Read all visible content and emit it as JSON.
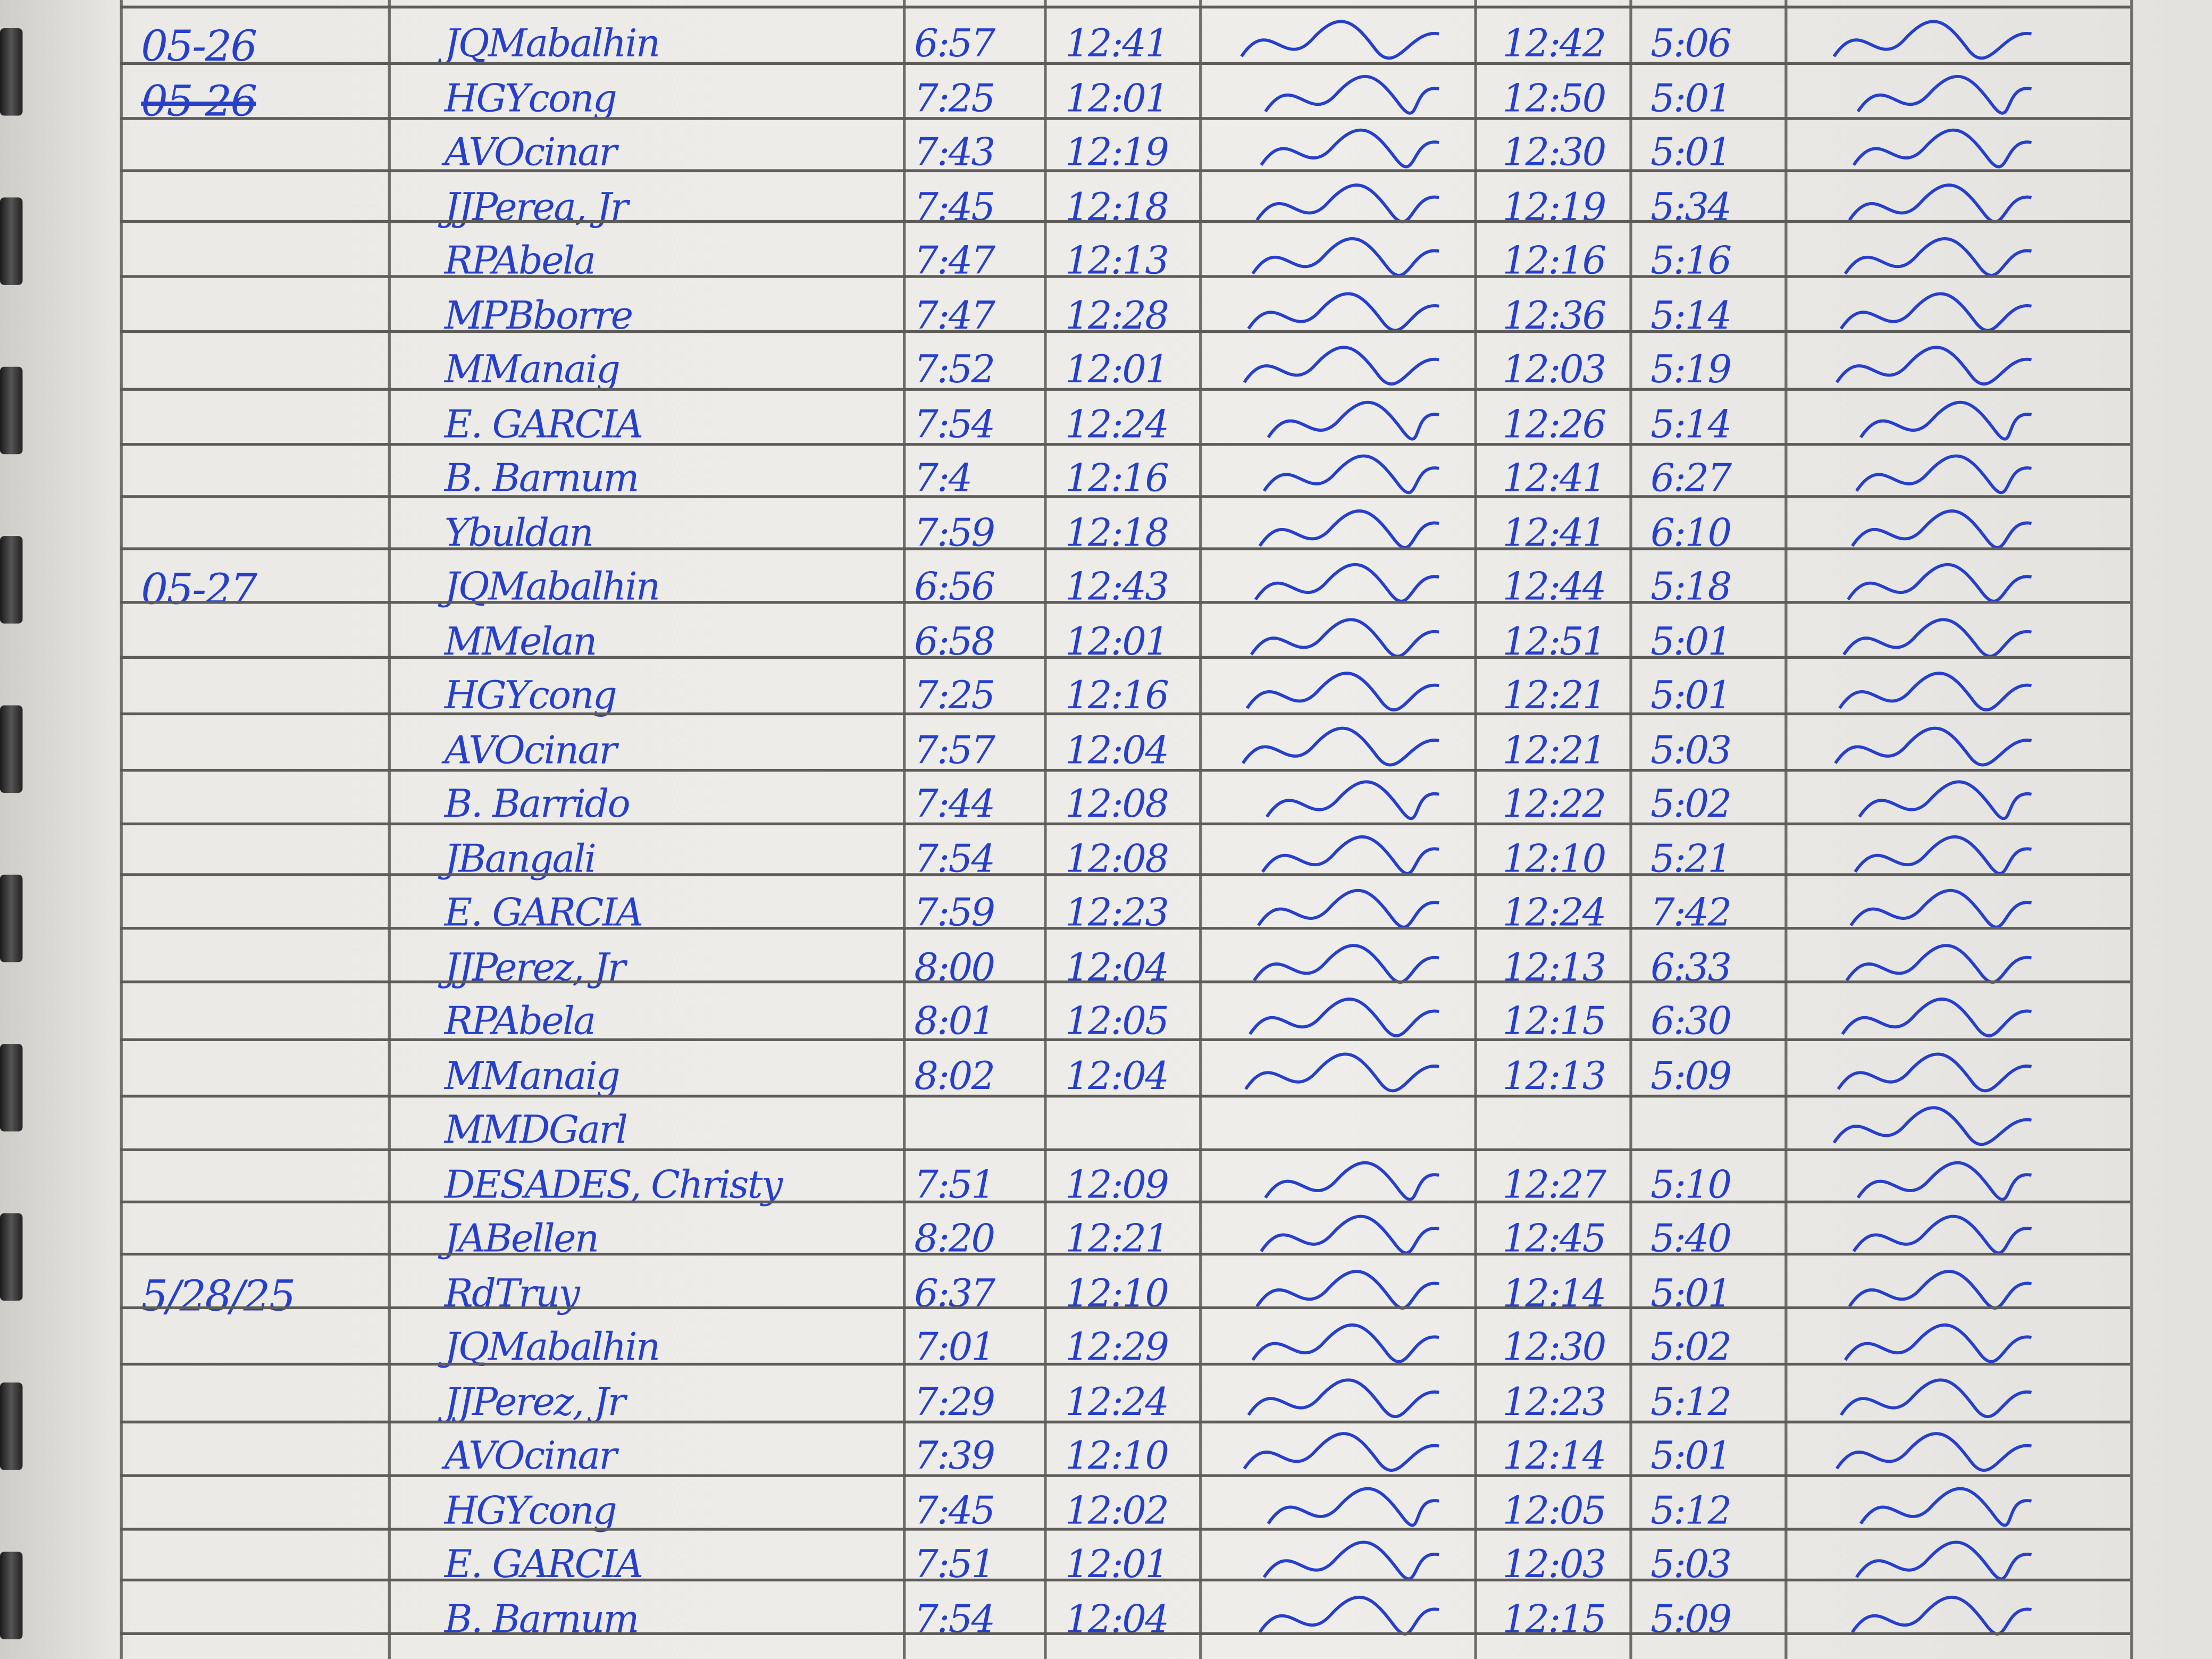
{
  "ink_color": "#2740c9",
  "rows": [
    {
      "date": "05-26",
      "name": "JQMabalhin",
      "am_in": "6:57",
      "am_out": "12:41",
      "pm_in": "12:42",
      "pm_out": "5:06"
    },
    {
      "date": "05-26",
      "date_struck": true,
      "name": "HGYcong",
      "am_in": "7:25",
      "am_out": "12:01",
      "pm_in": "12:50",
      "pm_out": "5:01"
    },
    {
      "date": "",
      "name": "AVOcinar",
      "am_in": "7:43",
      "am_out": "12:19",
      "pm_in": "12:30",
      "pm_out": "5:01"
    },
    {
      "date": "",
      "name": "JJPerea, Jr",
      "am_in": "7:45",
      "am_out": "12:18",
      "pm_in": "12:19",
      "pm_out": "5:34"
    },
    {
      "date": "",
      "name": "RPAbela",
      "am_in": "7:47",
      "am_out": "12:13",
      "pm_in": "12:16",
      "pm_out": "5:16"
    },
    {
      "date": "",
      "name": "MPBborre",
      "am_in": "7:47",
      "am_out": "12:28",
      "pm_in": "12:36",
      "pm_out": "5:14"
    },
    {
      "date": "",
      "name": "MManaig",
      "am_in": "7:52",
      "am_out": "12:01",
      "pm_in": "12:03",
      "pm_out": "5:19"
    },
    {
      "date": "",
      "name": "E. GARCIA",
      "am_in": "7:54",
      "am_out": "12:24",
      "pm_in": "12:26",
      "pm_out": "5:14"
    },
    {
      "date": "",
      "name": "B. Barnum",
      "am_in": "7:4",
      "am_out": "12:16",
      "pm_in": "12:41",
      "pm_out": "6:27"
    },
    {
      "date": "",
      "name": "Ybuldan",
      "am_in": "7:59",
      "am_out": "12:18",
      "pm_in": "12:41",
      "pm_out": "6:10"
    },
    {
      "date": "05-27",
      "name": "JQMabalhin",
      "am_in": "6:56",
      "am_out": "12:43",
      "pm_in": "12:44",
      "pm_out": "5:18"
    },
    {
      "date": "",
      "name": "MMelan",
      "am_in": "6:58",
      "am_out": "12:01",
      "pm_in": "12:51",
      "pm_out": "5:01"
    },
    {
      "date": "",
      "name": "HGYcong",
      "am_in": "7:25",
      "am_out": "12:16",
      "pm_in": "12:21",
      "pm_out": "5:01"
    },
    {
      "date": "",
      "name": "AVOcinar",
      "am_in": "7:57",
      "am_out": "12:04",
      "pm_in": "12:21",
      "pm_out": "5:03"
    },
    {
      "date": "",
      "name": "B. Barrido",
      "am_in": "7:44",
      "am_out": "12:08",
      "pm_in": "12:22",
      "pm_out": "5:02"
    },
    {
      "date": "",
      "name": "JBangali",
      "am_in": "7:54",
      "am_out": "12:08",
      "pm_in": "12:10",
      "pm_out": "5:21"
    },
    {
      "date": "",
      "name": "E. GARCIA",
      "am_in": "7:59",
      "am_out": "12:23",
      "pm_in": "12:24",
      "pm_out": "7:42"
    },
    {
      "date": "",
      "name": "JJPerez, Jr",
      "am_in": "8:00",
      "am_out": "12:04",
      "pm_in": "12:13",
      "pm_out": "6:33"
    },
    {
      "date": "",
      "name": "RPAbela",
      "am_in": "8:01",
      "am_out": "12:05",
      "pm_in": "12:15",
      "pm_out": "6:30"
    },
    {
      "date": "",
      "name": "MManaig",
      "am_in": "8:02",
      "am_out": "12:04",
      "pm_in": "12:13",
      "pm_out": "5:09"
    },
    {
      "date": "",
      "name": "MMDGarl",
      "am_in": "",
      "am_out": "",
      "pm_in": "",
      "pm_out": ""
    },
    {
      "date": "",
      "name": "DESADES, Christy",
      "am_in": "7:51",
      "am_out": "12:09",
      "pm_in": "12:27",
      "pm_out": "5:10"
    },
    {
      "date": "",
      "name": "JABellen",
      "am_in": "8:20",
      "am_out": "12:21",
      "pm_in": "12:45",
      "pm_out": "5:40"
    },
    {
      "date": "5/28/25",
      "name": "RdTruy",
      "am_in": "6:37",
      "am_out": "12:10",
      "pm_in": "12:14",
      "pm_out": "5:01"
    },
    {
      "date": "",
      "name": "JQMabalhin",
      "am_in": "7:01",
      "am_out": "12:29",
      "pm_in": "12:30",
      "pm_out": "5:02"
    },
    {
      "date": "",
      "name": "JJPerez, Jr",
      "am_in": "7:29",
      "am_out": "12:24",
      "pm_in": "12:23",
      "pm_out": "5:12"
    },
    {
      "date": "",
      "name": "AVOcinar",
      "am_in": "7:39",
      "am_out": "12:10",
      "pm_in": "12:14",
      "pm_out": "5:01"
    },
    {
      "date": "",
      "name": "HGYcong",
      "am_in": "7:45",
      "am_out": "12:02",
      "pm_in": "12:05",
      "pm_out": "5:12"
    },
    {
      "date": "",
      "name": "E. GARCIA",
      "am_in": "7:51",
      "am_out": "12:01",
      "pm_in": "12:03",
      "pm_out": "5:03"
    },
    {
      "date": "",
      "name": "B. Barnum",
      "am_in": "7:54",
      "am_out": "12:04",
      "pm_in": "12:15",
      "pm_out": "5:09"
    }
  ]
}
